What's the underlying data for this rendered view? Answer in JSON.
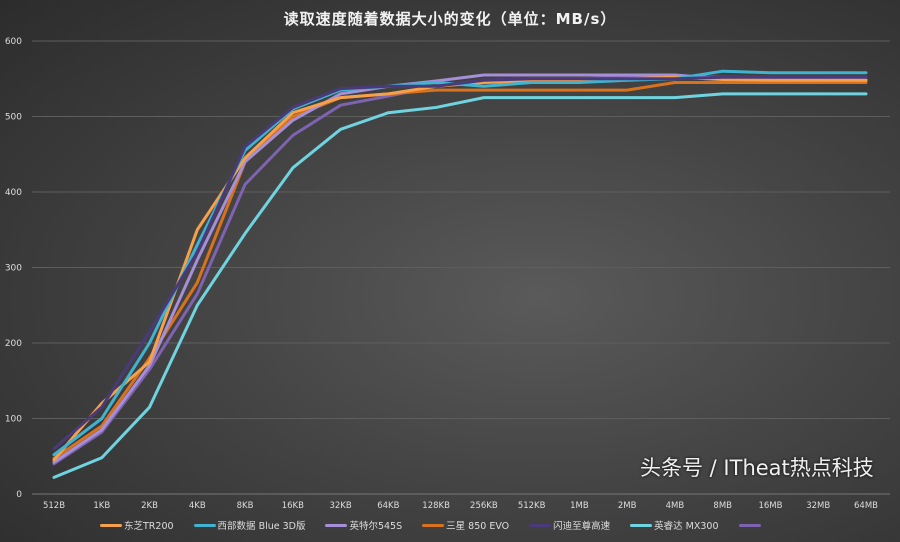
{
  "chart_data": {
    "type": "line",
    "title": "读取速度随着数据大小的变化（单位：MB/s）",
    "xlabel": "",
    "ylabel": "",
    "categories": [
      "512B",
      "1KB",
      "2KB",
      "4KB",
      "8KB",
      "16KB",
      "32KB",
      "64KB",
      "128KB",
      "256KB",
      "512KB",
      "1MB",
      "2MB",
      "4MB",
      "8MB",
      "16MB",
      "32MB",
      "64MB"
    ],
    "ylim": [
      0,
      600
    ],
    "yticks": [
      0,
      100,
      200,
      300,
      400,
      500,
      600
    ],
    "grid": true,
    "legend": "bottom",
    "series": [
      {
        "name": "东芝TR200",
        "color": "#f5a04a",
        "values": [
          45,
          120,
          175,
          350,
          445,
          505,
          525,
          530,
          540,
          545,
          547,
          548,
          550,
          552,
          549,
          548,
          548,
          548
        ]
      },
      {
        "name": "西部数据 Blue 3D版",
        "color": "#3fb3d0",
        "values": [
          52,
          100,
          200,
          330,
          455,
          510,
          535,
          540,
          545,
          540,
          545,
          545,
          548,
          550,
          560,
          558,
          558,
          558
        ]
      },
      {
        "name": "英特尔545S",
        "color": "#a58fd6",
        "values": [
          42,
          85,
          170,
          310,
          440,
          495,
          530,
          540,
          547,
          555,
          555,
          555,
          555,
          555,
          550,
          550,
          550,
          548
        ]
      },
      {
        "name": "三星 850 EVO",
        "color": "#d8721c",
        "values": [
          47,
          90,
          180,
          280,
          440,
          500,
          525,
          530,
          535,
          535,
          535,
          535,
          535,
          545,
          545,
          545,
          545,
          545
        ]
      },
      {
        "name": "闪迪至尊高速",
        "color": "#4b3a7a",
        "values": [
          60,
          115,
          215,
          320,
          460,
          512,
          537,
          540,
          540,
          548,
          550,
          550,
          550,
          550,
          552,
          552,
          552,
          552
        ]
      },
      {
        "name": "英睿达 MX300",
        "color": "#6fd3e0",
        "values": [
          22,
          48,
          115,
          250,
          345,
          432,
          483,
          505,
          512,
          525,
          525,
          525,
          525,
          525,
          530,
          530,
          530,
          530
        ]
      },
      {
        "color": "#7d63b0",
        "values": [
          40,
          82,
          165,
          265,
          410,
          475,
          515,
          527,
          540,
          548,
          550,
          550,
          552,
          553,
          552,
          552,
          552,
          552
        ]
      }
    ]
  },
  "watermark": "头条号 / ITheat热点科技"
}
